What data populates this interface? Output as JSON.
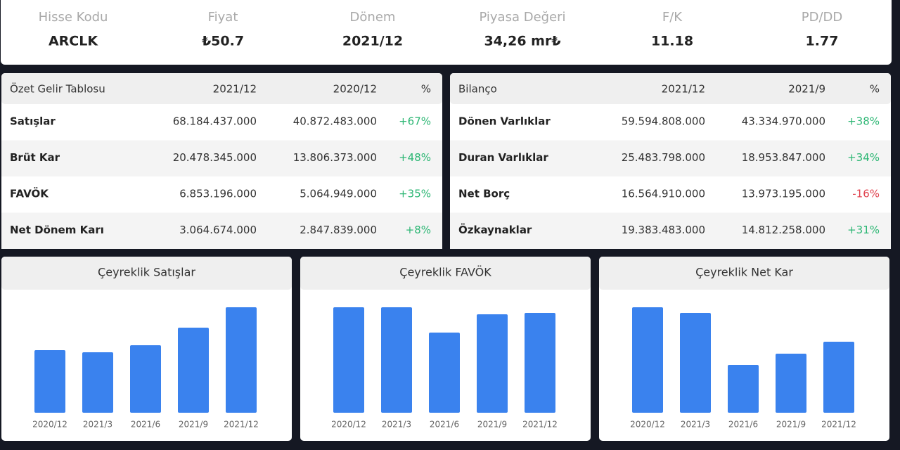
{
  "header": [
    {
      "label": "Hisse Kodu",
      "value": "ARCLK"
    },
    {
      "label": "Fiyat",
      "value": "₺50.7"
    },
    {
      "label": "Dönem",
      "value": "2021/12"
    },
    {
      "label": "Piyasa Değeri",
      "value": "34,26 mr₺"
    },
    {
      "label": "F/K",
      "value": "11.18"
    },
    {
      "label": "PD/DD",
      "value": "1.77"
    }
  ],
  "tables": [
    {
      "columns": [
        "Özet Gelir Tablosu",
        "2021/12",
        "2020/12",
        "%"
      ],
      "rows": [
        [
          "Satışlar",
          "68.184.437.000",
          "40.872.483.000",
          "+67%"
        ],
        [
          "Brüt Kar",
          "20.478.345.000",
          "13.806.373.000",
          "+48%"
        ],
        [
          "FAVÖK",
          "6.853.196.000",
          "5.064.949.000",
          "+35%"
        ],
        [
          "Net Dönem Karı",
          "3.064.674.000",
          "2.847.839.000",
          "+8%"
        ]
      ]
    },
    {
      "columns": [
        "Bilanço",
        "2021/12",
        "2021/9",
        "%"
      ],
      "rows": [
        [
          "Dönen Varlıklar",
          "59.594.808.000",
          "43.334.970.000",
          "+38%"
        ],
        [
          "Duran Varlıklar",
          "25.483.798.000",
          "18.953.847.000",
          "+34%"
        ],
        [
          "Net Borç",
          "16.564.910.000",
          "13.973.195.000",
          "-16%"
        ],
        [
          "Özkaynaklar",
          "19.383.483.000",
          "14.812.258.000",
          "+31%"
        ]
      ]
    }
  ],
  "chart_data": [
    {
      "type": "bar",
      "title": "Çeyreklik Satışlar",
      "categories": [
        "2020/12",
        "2021/3",
        "2021/6",
        "2021/9",
        "2021/12"
      ],
      "values": [
        89,
        86,
        96,
        121,
        150
      ],
      "color": "#3a82ee",
      "ylim": [
        0,
        150
      ]
    },
    {
      "type": "bar",
      "title": "Çeyreklik FAVÖK",
      "categories": [
        "2020/12",
        "2021/3",
        "2021/6",
        "2021/9",
        "2021/12"
      ],
      "values": [
        150,
        150,
        114,
        140,
        142
      ],
      "color": "#3a82ee",
      "ylim": [
        0,
        150
      ]
    },
    {
      "type": "bar",
      "title": "Çeyreklik Net Kar",
      "categories": [
        "2020/12",
        "2021/3",
        "2021/6",
        "2021/9",
        "2021/12"
      ],
      "values": [
        150,
        142,
        68,
        84,
        101
      ],
      "color": "#3a82ee",
      "ylim": [
        0,
        150
      ]
    }
  ]
}
